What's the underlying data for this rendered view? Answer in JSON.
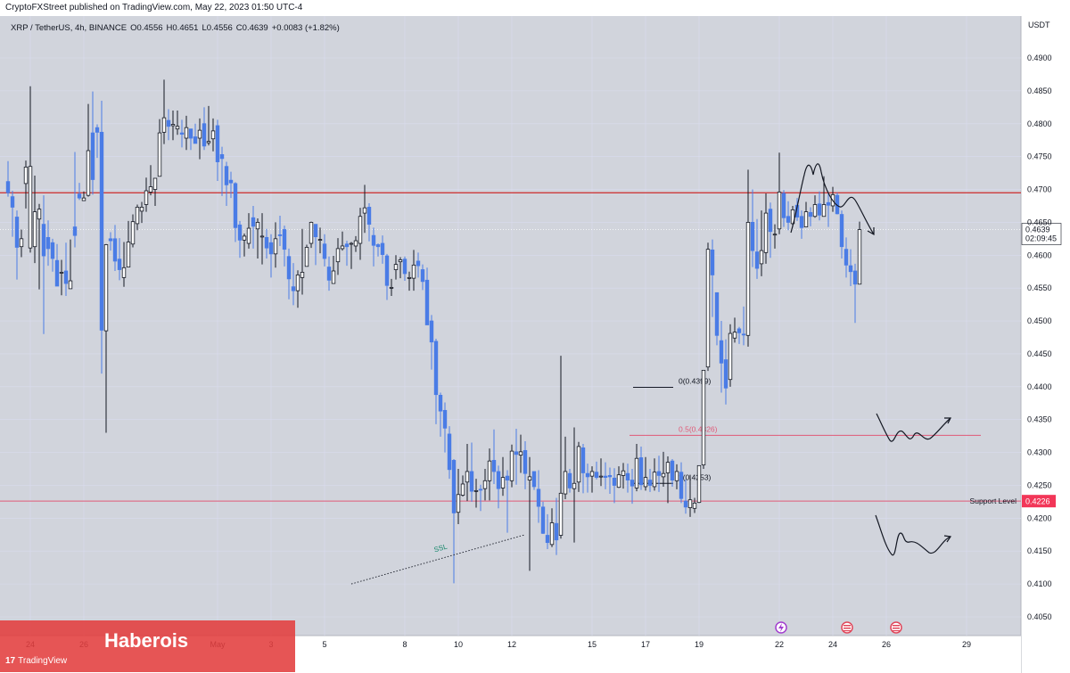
{
  "header": {
    "publish_text": "CryptoFXStreet published on TradingView.com, May 22, 2023 01:50 UTC-4"
  },
  "legend": {
    "symbol": "XRP / TetherUS, 4h, BINANCE",
    "open": "O0.4556",
    "high": "H0.4651",
    "low": "L0.4556",
    "close": "C0.4639",
    "change": "+0.0083 (+1.82%)"
  },
  "chart_data": {
    "type": "candlestick",
    "currency_label": "USDT",
    "ylim": [
      0.4025,
      0.4955
    ],
    "y_ticks": [
      "0.4900",
      "0.4850",
      "0.4800",
      "0.4750",
      "0.4700",
      "0.4650",
      "0.4600",
      "0.4550",
      "0.4500",
      "0.4450",
      "0.4400",
      "0.4350",
      "0.4300",
      "0.4250",
      "0.4200",
      "0.4150",
      "0.4100",
      "0.4050"
    ],
    "x_ticks": [
      {
        "label": "24",
        "bar": 5
      },
      {
        "label": "26",
        "bar": 17
      },
      {
        "label": "May",
        "bar": 47
      },
      {
        "label": "3",
        "bar": 59
      },
      {
        "label": "5",
        "bar": 71
      },
      {
        "label": "8",
        "bar": 89
      },
      {
        "label": "10",
        "bar": 101
      },
      {
        "label": "12",
        "bar": 113
      },
      {
        "label": "15",
        "bar": 131
      },
      {
        "label": "17",
        "bar": 143
      },
      {
        "label": "19",
        "bar": 155
      },
      {
        "label": "22",
        "bar": 173
      },
      {
        "label": "24",
        "bar": 185
      },
      {
        "label": "26",
        "bar": 197
      },
      {
        "label": "29",
        "bar": 215
      }
    ],
    "candles": [
      [
        0.4712,
        0.4695,
        0.4743,
        0.4689
      ],
      [
        0.4689,
        0.4673,
        0.4698,
        0.4628
      ],
      [
        0.4658,
        0.4612,
        0.4668,
        0.4563
      ],
      [
        0.4613,
        0.4625,
        0.4639,
        0.4597
      ],
      [
        0.4709,
        0.4734,
        0.4744,
        0.4671
      ],
      [
        0.4611,
        0.4735,
        0.4857,
        0.4604
      ],
      [
        0.4613,
        0.4666,
        0.4721,
        0.4588
      ],
      [
        0.4655,
        0.467,
        0.4678,
        0.4548
      ],
      [
        0.4647,
        0.4599,
        0.4691,
        0.448
      ],
      [
        0.4627,
        0.461,
        0.4653,
        0.4584
      ],
      [
        0.4619,
        0.4595,
        0.4625,
        0.4575
      ],
      [
        0.4592,
        0.4553,
        0.4617,
        0.4577
      ],
      [
        0.4574,
        0.4574,
        0.4593,
        0.4539
      ],
      [
        0.4576,
        0.4557,
        0.4619,
        0.4538
      ],
      [
        0.4549,
        0.4561,
        0.4624,
        0.4549
      ],
      [
        0.4643,
        0.463,
        0.4757,
        0.4612
      ],
      [
        0.4693,
        0.4687,
        0.471,
        0.4684
      ],
      [
        0.4683,
        0.4687,
        0.4697,
        0.4683
      ],
      [
        0.4691,
        0.4759,
        0.483,
        0.4689
      ],
      [
        0.4786,
        0.4715,
        0.4849,
        0.4692
      ],
      [
        0.4794,
        0.4787,
        0.4799,
        0.4748
      ],
      [
        0.4787,
        0.4486,
        0.4835,
        0.442
      ],
      [
        0.4485,
        0.4616,
        0.4617,
        0.433
      ],
      [
        0.4625,
        0.4622,
        0.4635,
        0.4607
      ],
      [
        0.4625,
        0.4591,
        0.4646,
        0.4576
      ],
      [
        0.4594,
        0.4578,
        0.4626,
        0.4562
      ],
      [
        0.4566,
        0.4581,
        0.462,
        0.4552
      ],
      [
        0.4582,
        0.462,
        0.4652,
        0.4596
      ],
      [
        0.4617,
        0.4651,
        0.4662,
        0.4612
      ],
      [
        0.4648,
        0.4673,
        0.4677,
        0.4638
      ],
      [
        0.4667,
        0.4673,
        0.4681,
        0.4649
      ],
      [
        0.4677,
        0.4698,
        0.4718,
        0.4666
      ],
      [
        0.4696,
        0.4704,
        0.4737,
        0.4691
      ],
      [
        0.47,
        0.4717,
        0.4717,
        0.4675
      ],
      [
        0.472,
        0.4786,
        0.4807,
        0.4721
      ],
      [
        0.4787,
        0.4809,
        0.4867,
        0.4769
      ],
      [
        0.4805,
        0.4796,
        0.4822,
        0.4775
      ],
      [
        0.4797,
        0.4799,
        0.482,
        0.4775
      ],
      [
        0.4792,
        0.4796,
        0.482,
        0.4783
      ],
      [
        0.4786,
        0.4784,
        0.4806,
        0.4764
      ],
      [
        0.4778,
        0.4794,
        0.4812,
        0.476
      ],
      [
        0.4792,
        0.4778,
        0.4792,
        0.476
      ],
      [
        0.478,
        0.477,
        0.48,
        0.477
      ],
      [
        0.4778,
        0.479,
        0.4808,
        0.4746
      ],
      [
        0.48,
        0.4766,
        0.4825,
        0.476
      ],
      [
        0.4771,
        0.4773,
        0.4827,
        0.4767
      ],
      [
        0.4777,
        0.4789,
        0.4808,
        0.4758
      ],
      [
        0.4797,
        0.4742,
        0.4806,
        0.4713
      ],
      [
        0.4753,
        0.4747,
        0.4765,
        0.469
      ],
      [
        0.4735,
        0.4707,
        0.4742,
        0.4675
      ],
      [
        0.4714,
        0.471,
        0.4727,
        0.4687
      ],
      [
        0.4709,
        0.4642,
        0.4711,
        0.462
      ],
      [
        0.4646,
        0.4623,
        0.4652,
        0.4596
      ],
      [
        0.4623,
        0.4629,
        0.4633,
        0.4598
      ],
      [
        0.4618,
        0.4641,
        0.4664,
        0.461
      ],
      [
        0.4657,
        0.4644,
        0.4675,
        0.461
      ],
      [
        0.464,
        0.465,
        0.4656,
        0.4595
      ],
      [
        0.4629,
        0.4629,
        0.4664,
        0.4586
      ],
      [
        0.4627,
        0.4611,
        0.464,
        0.4595
      ],
      [
        0.4619,
        0.4602,
        0.4632,
        0.4566
      ],
      [
        0.4602,
        0.4625,
        0.465,
        0.4581
      ],
      [
        0.4631,
        0.463,
        0.466,
        0.4614
      ],
      [
        0.4639,
        0.4609,
        0.4645,
        0.4583
      ],
      [
        0.4598,
        0.4564,
        0.461,
        0.4533
      ],
      [
        0.4552,
        0.4546,
        0.4588,
        0.4524
      ],
      [
        0.4546,
        0.457,
        0.4577,
        0.452
      ],
      [
        0.4566,
        0.4574,
        0.464,
        0.454
      ],
      [
        0.4583,
        0.4612,
        0.4616,
        0.4583
      ],
      [
        0.4618,
        0.465,
        0.4651,
        0.4611
      ],
      [
        0.4647,
        0.4628,
        0.4647,
        0.4585
      ],
      [
        0.4624,
        0.4624,
        0.4642,
        0.4603
      ],
      [
        0.4617,
        0.4595,
        0.4632,
        0.4583
      ],
      [
        0.4582,
        0.4562,
        0.4598,
        0.4546
      ],
      [
        0.4557,
        0.4576,
        0.4599,
        0.4558
      ],
      [
        0.459,
        0.461,
        0.4626,
        0.457
      ],
      [
        0.461,
        0.4614,
        0.4636,
        0.4607
      ],
      [
        0.4617,
        0.4613,
        0.4622,
        0.4584
      ],
      [
        0.4617,
        0.4618,
        0.462,
        0.4579
      ],
      [
        0.4614,
        0.4622,
        0.4629,
        0.4605
      ],
      [
        0.4618,
        0.4659,
        0.4672,
        0.4593
      ],
      [
        0.4664,
        0.4672,
        0.4707,
        0.4634
      ],
      [
        0.4673,
        0.4647,
        0.4679,
        0.4621
      ],
      [
        0.463,
        0.4615,
        0.4642,
        0.4583
      ],
      [
        0.4616,
        0.4613,
        0.4618,
        0.4598
      ],
      [
        0.4618,
        0.4601,
        0.463,
        0.4587
      ],
      [
        0.4599,
        0.4554,
        0.4602,
        0.4532
      ],
      [
        0.455,
        0.4551,
        0.4564,
        0.4538
      ],
      [
        0.4578,
        0.4586,
        0.46,
        0.4563
      ],
      [
        0.459,
        0.4593,
        0.4597,
        0.4565
      ],
      [
        0.4594,
        0.4572,
        0.4598,
        0.4561
      ],
      [
        0.4566,
        0.4566,
        0.4575,
        0.4546
      ],
      [
        0.4565,
        0.4585,
        0.4608,
        0.4546
      ],
      [
        0.4591,
        0.4584,
        0.4604,
        0.4566
      ],
      [
        0.4578,
        0.456,
        0.4586,
        0.4547
      ],
      [
        0.4562,
        0.4494,
        0.4581,
        0.4494
      ],
      [
        0.45,
        0.4468,
        0.4509,
        0.4426
      ],
      [
        0.4469,
        0.4388,
        0.4473,
        0.4343
      ],
      [
        0.4387,
        0.4363,
        0.4391,
        0.4324
      ],
      [
        0.4364,
        0.4337,
        0.4376,
        0.43
      ],
      [
        0.4328,
        0.4274,
        0.434,
        0.426
      ],
      [
        0.4288,
        0.4208,
        0.429,
        0.4101
      ],
      [
        0.4209,
        0.4236,
        0.4275,
        0.4191
      ],
      [
        0.4235,
        0.4252,
        0.4265,
        0.4233
      ],
      [
        0.4255,
        0.4271,
        0.4313,
        0.4226
      ],
      [
        0.4271,
        0.4241,
        0.4315,
        0.4225
      ],
      [
        0.4241,
        0.4242,
        0.426,
        0.4216
      ],
      [
        0.4244,
        0.4243,
        0.4251,
        0.4211
      ],
      [
        0.4245,
        0.4257,
        0.4275,
        0.4227
      ],
      [
        0.4257,
        0.4287,
        0.4306,
        0.4227
      ],
      [
        0.4288,
        0.4271,
        0.4335,
        0.4252
      ],
      [
        0.4271,
        0.4245,
        0.428,
        0.4215
      ],
      [
        0.4246,
        0.4262,
        0.4293,
        0.4234
      ],
      [
        0.4264,
        0.4258,
        0.4273,
        0.4178
      ],
      [
        0.4257,
        0.4302,
        0.4312,
        0.4247
      ],
      [
        0.4301,
        0.4297,
        0.4336,
        0.4251
      ],
      [
        0.4296,
        0.4301,
        0.4327,
        0.4269
      ],
      [
        0.4303,
        0.4268,
        0.4317,
        0.4244
      ],
      [
        0.4258,
        0.4263,
        0.4293,
        0.412
      ],
      [
        0.4271,
        0.4248,
        0.4265,
        0.4243
      ],
      [
        0.4244,
        0.4218,
        0.4273,
        0.4193
      ],
      [
        0.4217,
        0.4177,
        0.4225,
        0.4176
      ],
      [
        0.4174,
        0.4163,
        0.4206,
        0.4153
      ],
      [
        0.416,
        0.4193,
        0.4215,
        0.4156
      ],
      [
        0.4192,
        0.4167,
        0.4231,
        0.4144
      ],
      [
        0.4174,
        0.4238,
        0.4447,
        0.4169
      ],
      [
        0.4237,
        0.4271,
        0.4324,
        0.4229
      ],
      [
        0.4268,
        0.4246,
        0.4275,
        0.4239
      ],
      [
        0.4245,
        0.4253,
        0.4338,
        0.4163
      ],
      [
        0.4255,
        0.4309,
        0.4316,
        0.424
      ],
      [
        0.4307,
        0.4269,
        0.4313,
        0.4238
      ],
      [
        0.4268,
        0.4263,
        0.4283,
        0.4239
      ],
      [
        0.4264,
        0.4271,
        0.4279,
        0.4239
      ],
      [
        0.427,
        0.4262,
        0.4286,
        0.4259
      ],
      [
        0.4263,
        0.4264,
        0.4291,
        0.4249
      ],
      [
        0.4264,
        0.4262,
        0.4285,
        0.4244
      ],
      [
        0.4265,
        0.4263,
        0.4277,
        0.4237
      ],
      [
        0.4261,
        0.425,
        0.4276,
        0.4223
      ],
      [
        0.4247,
        0.4266,
        0.4279,
        0.4246
      ],
      [
        0.4265,
        0.4272,
        0.4284,
        0.4245
      ],
      [
        0.4268,
        0.4258,
        0.4283,
        0.4239
      ],
      [
        0.4258,
        0.4249,
        0.4275,
        0.4222
      ],
      [
        0.4246,
        0.4291,
        0.4313,
        0.4241
      ],
      [
        0.4292,
        0.4251,
        0.4309,
        0.4243
      ],
      [
        0.4248,
        0.4262,
        0.4293,
        0.4242
      ],
      [
        0.4258,
        0.425,
        0.4275,
        0.424
      ],
      [
        0.4248,
        0.427,
        0.4291,
        0.4242
      ],
      [
        0.4271,
        0.4265,
        0.4295,
        0.424
      ],
      [
        0.4263,
        0.4268,
        0.4301,
        0.4248
      ],
      [
        0.4269,
        0.4285,
        0.4294,
        0.4223
      ],
      [
        0.4287,
        0.4258,
        0.429,
        0.4248
      ],
      [
        0.4257,
        0.4271,
        0.4282,
        0.4244
      ],
      [
        0.427,
        0.423,
        0.4285,
        0.4223
      ],
      [
        0.4226,
        0.4217,
        0.4259,
        0.4207
      ],
      [
        0.4216,
        0.4228,
        0.4266,
        0.4202
      ],
      [
        0.4215,
        0.4223,
        0.4231,
        0.4208
      ],
      [
        0.4224,
        0.428,
        0.4278,
        0.4223
      ],
      [
        0.4281,
        0.4425,
        0.441,
        0.4275
      ],
      [
        0.443,
        0.4609,
        0.4619,
        0.4424
      ],
      [
        0.4608,
        0.457,
        0.4624,
        0.4506
      ],
      [
        0.4543,
        0.4478,
        0.4542,
        0.4463
      ],
      [
        0.447,
        0.4436,
        0.45,
        0.4391
      ],
      [
        0.4441,
        0.4398,
        0.4472,
        0.4373
      ],
      [
        0.4411,
        0.4481,
        0.4495,
        0.44
      ],
      [
        0.4474,
        0.4483,
        0.4505,
        0.4467
      ],
      [
        0.4488,
        0.4482,
        0.4491,
        0.4465
      ],
      [
        0.448,
        0.4479,
        0.4522,
        0.4463
      ],
      [
        0.4478,
        0.465,
        0.473,
        0.4461
      ],
      [
        0.465,
        0.4607,
        0.47,
        0.4582
      ],
      [
        0.4605,
        0.458,
        0.4655,
        0.4564
      ],
      [
        0.4587,
        0.4607,
        0.4668,
        0.4568
      ],
      [
        0.4604,
        0.4664,
        0.4694,
        0.4587
      ],
      [
        0.467,
        0.4636,
        0.468,
        0.4596
      ],
      [
        0.4631,
        0.4632,
        0.4647,
        0.461
      ],
      [
        0.464,
        0.4696,
        0.4756,
        0.4632
      ],
      [
        0.4694,
        0.4657,
        0.4699,
        0.4643
      ],
      [
        0.4659,
        0.465,
        0.4682,
        0.4638
      ],
      [
        0.4648,
        0.4669,
        0.4675,
        0.4643
      ],
      [
        0.4676,
        0.4658,
        0.4687,
        0.4652
      ],
      [
        0.4659,
        0.4642,
        0.4668,
        0.4625
      ],
      [
        0.4643,
        0.4666,
        0.4681,
        0.4651
      ],
      [
        0.4665,
        0.4659,
        0.4673,
        0.4644
      ],
      [
        0.4659,
        0.4677,
        0.4691,
        0.4657
      ],
      [
        0.4678,
        0.4661,
        0.4697,
        0.4653
      ],
      [
        0.4659,
        0.4677,
        0.472,
        0.4659
      ],
      [
        0.468,
        0.4676,
        0.4696,
        0.4643
      ],
      [
        0.4675,
        0.4692,
        0.4704,
        0.4666
      ],
      [
        0.4691,
        0.4663,
        0.4695,
        0.4662
      ],
      [
        0.4662,
        0.4613,
        0.4668,
        0.4595
      ],
      [
        0.4609,
        0.4585,
        0.4627,
        0.4566
      ],
      [
        0.4584,
        0.4575,
        0.4609,
        0.4553
      ],
      [
        0.4576,
        0.4556,
        0.4587,
        0.4497
      ],
      [
        0.4556,
        0.4639,
        0.4651,
        0.4556
      ]
    ],
    "horizontal_lines": [
      {
        "name": "resistance-line",
        "price": 0.4695,
        "color": "#cc2a2a"
      },
      {
        "name": "support-line",
        "price": 0.4226,
        "color": "#e05a78",
        "label": "Support Level",
        "badge": "0.4226",
        "badge_color": "#f23658"
      }
    ],
    "fibonacci": [
      {
        "label": "0(0.4399)",
        "price": 0.4399,
        "color": "#131722"
      },
      {
        "label": "0.5(0.4326)",
        "price": 0.4326,
        "color": "#e05a78"
      },
      {
        "label": "1(0.4253)",
        "price": 0.4253,
        "color": "#131722"
      }
    ],
    "ssl": {
      "label": "SSL",
      "from": {
        "bar": 77,
        "price": 0.41
      },
      "to": {
        "bar": 116,
        "price": 0.4175
      }
    },
    "last_price": {
      "price": 0.4639,
      "label": "0.4639",
      "countdown": "02:09:45"
    },
    "colors": {
      "up": "#ffffff",
      "down": "#4a7ce6",
      "outline": "#131722",
      "background": "#d1d4dc",
      "grid": "#d9dcee"
    }
  },
  "branding": {
    "author": "Haberois",
    "tv_logo": "TradingView"
  }
}
